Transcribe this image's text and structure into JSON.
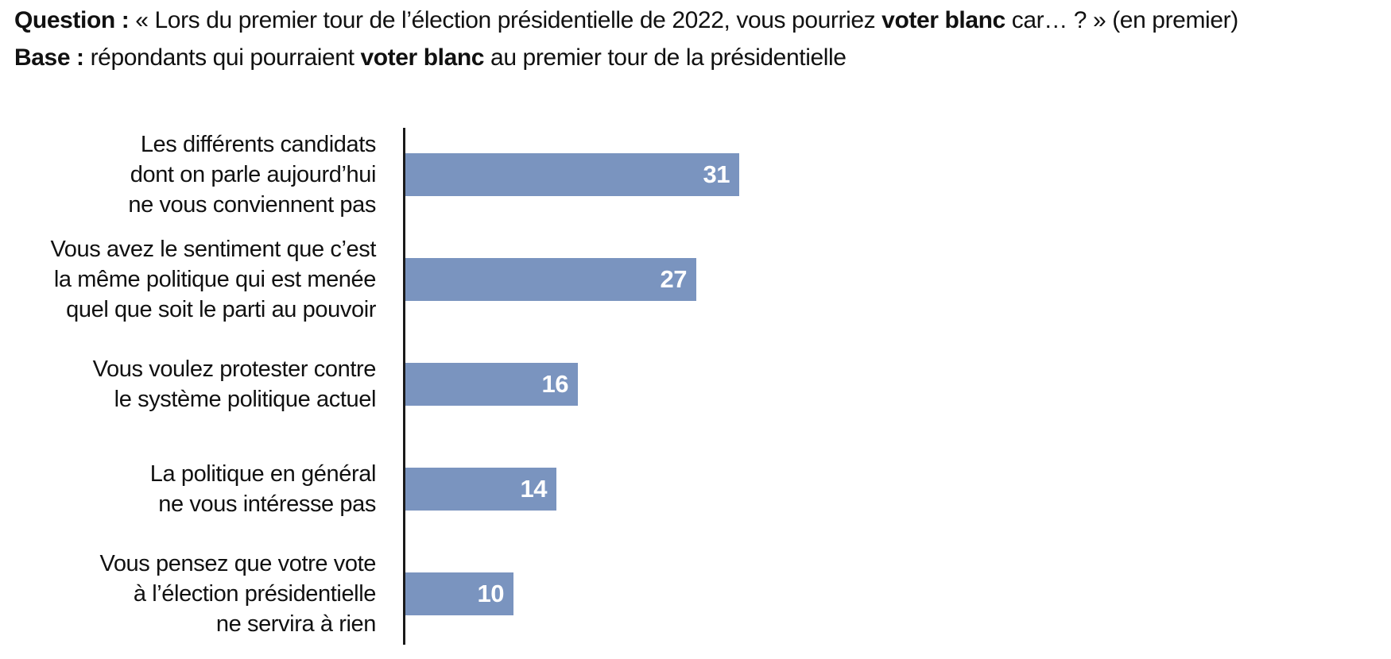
{
  "header": {
    "question": {
      "label": "Question :",
      "pre": " « Lors du premier tour de l’élection présidentielle de 2022, vous pourriez ",
      "bold": "voter blanc",
      "post": " car… ? » (en premier)"
    },
    "base": {
      "label": "Base :",
      "pre": " répondants qui pourraient ",
      "bold": "voter blanc",
      "post": " au premier tour de la présidentielle"
    }
  },
  "chart_data": {
    "type": "bar",
    "orientation": "horizontal",
    "title": "",
    "categories": [
      "Les différents candidats\ndont on parle aujourd’hui\nne vous conviennent pas",
      "Vous avez le sentiment que c’est\nla même politique qui est menée\nquel que soit le parti au pouvoir",
      "Vous voulez protester contre\nle système politique actuel",
      "La politique en général\nne vous intéresse pas",
      "Vous pensez que votre vote\nà l’élection présidentielle\nne servira à rien"
    ],
    "values": [
      31,
      27,
      16,
      14,
      10
    ],
    "xlim": [
      0,
      35
    ],
    "grid": false,
    "legend": false,
    "value_labels_shown": true,
    "bar_color": "#7a94bf",
    "value_label_color": "#ffffff",
    "axis_color": "#1a1a1a"
  }
}
